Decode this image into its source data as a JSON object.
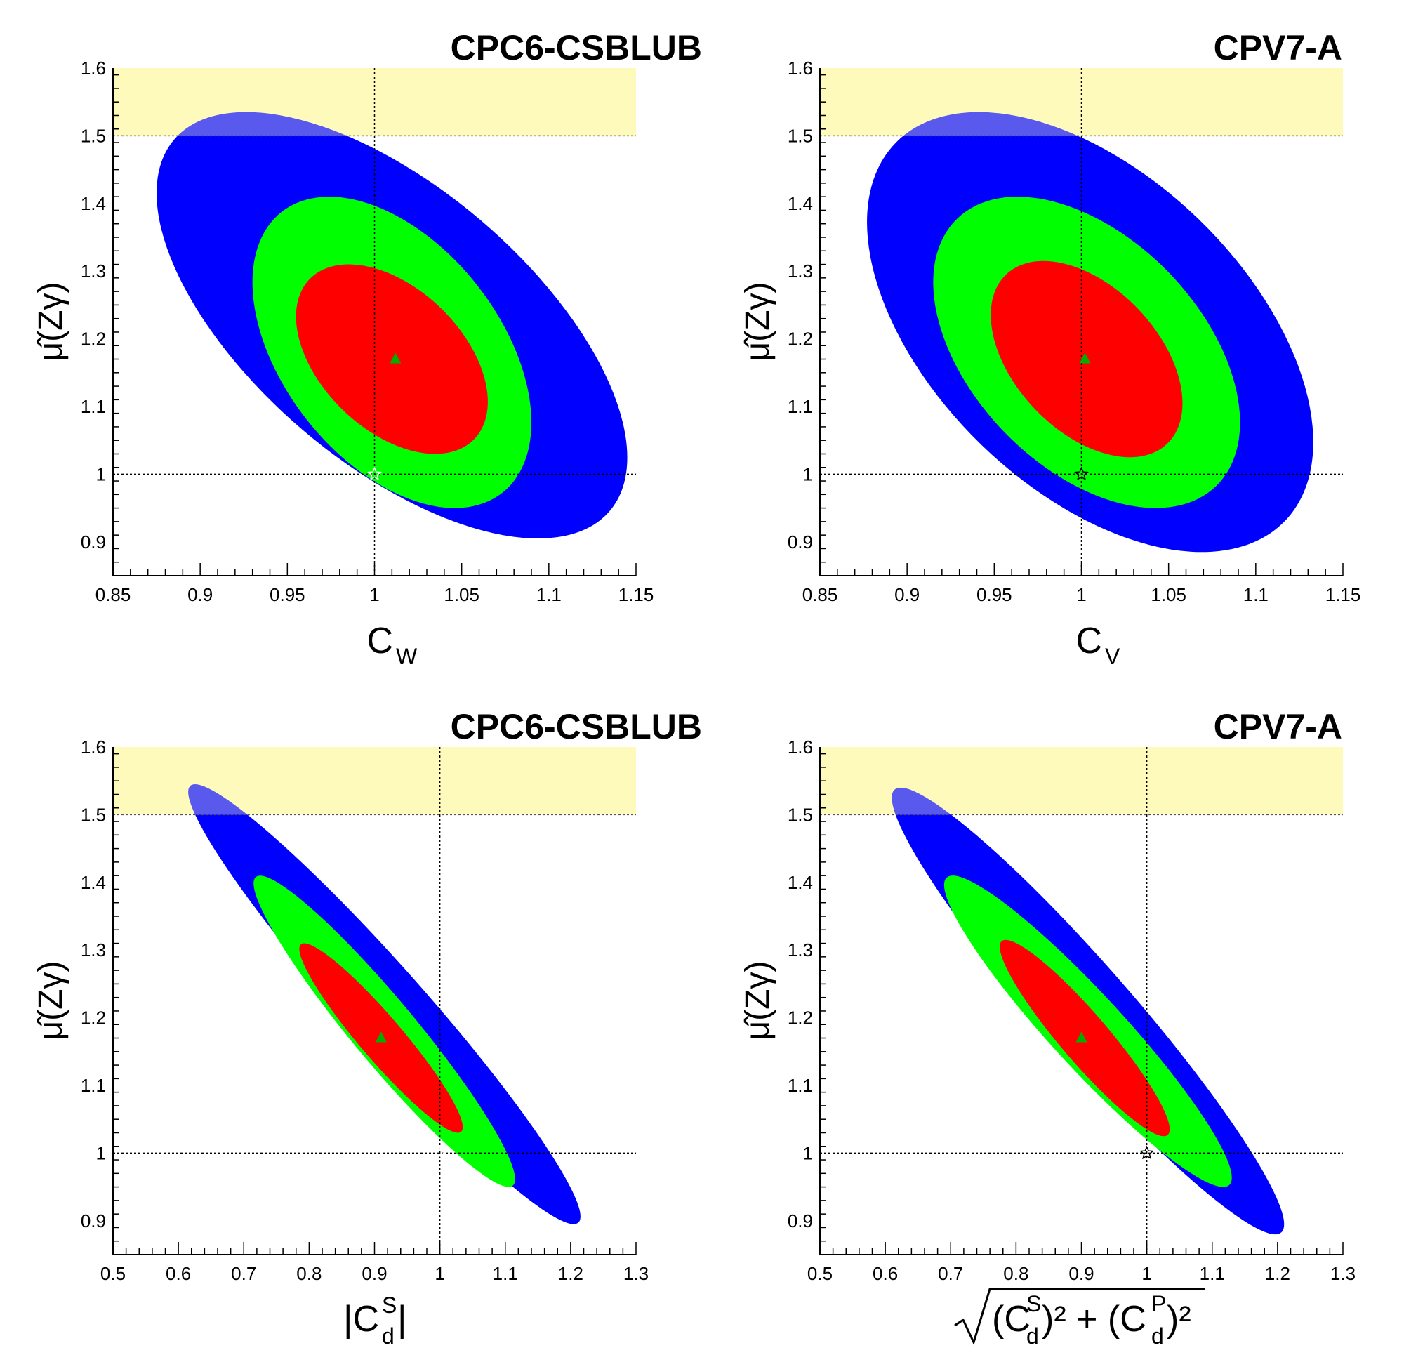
{
  "chart_data": [
    {
      "type": "scatter",
      "title": "CPC6-CSBLUB",
      "ylabel": "μ̂(Zγ)",
      "xlabel": {
        "base": "C",
        "sub": "W"
      },
      "xlim": [
        0.85,
        1.15
      ],
      "ylim": [
        0.85,
        1.6
      ],
      "xticks": [
        "0.85",
        "0.9",
        "0.95",
        "1",
        "1.05",
        "1.1",
        "1.15"
      ],
      "yticks": [
        "0.9",
        "1",
        "1.1",
        "1.2",
        "1.3",
        "1.4",
        "1.5",
        "1.6"
      ],
      "excluded_band": {
        "ymin": 1.5,
        "ymax": 1.6,
        "color": "#fdf8b4"
      },
      "reference_lines": {
        "x": 1.0,
        "y": 1.0
      },
      "best_fit": {
        "x": 1.012,
        "y": 1.17
      },
      "sm_point": {
        "x": 1.0,
        "y": 1.0
      },
      "regions": [
        {
          "level": "3sigma",
          "color": "#0000ff",
          "center": [
            1.01,
            1.22
          ],
          "semi_x": 0.135,
          "semi_y": 0.315,
          "rho": -0.62
        },
        {
          "level": "2sigma",
          "color": "#00ff00",
          "center": [
            1.01,
            1.18
          ],
          "semi_x": 0.08,
          "semi_y": 0.23,
          "rho": -0.45
        },
        {
          "level": "1sigma",
          "color": "#ff0000",
          "center": [
            1.01,
            1.17
          ],
          "semi_x": 0.055,
          "semi_y": 0.14,
          "rho": -0.45
        }
      ]
    },
    {
      "type": "scatter",
      "title": "CPV7-A",
      "ylabel": "μ̂(Zγ)",
      "xlabel": {
        "base": "C",
        "sub": "V"
      },
      "xlim": [
        0.85,
        1.15
      ],
      "ylim": [
        0.85,
        1.6
      ],
      "xticks": [
        "0.85",
        "0.9",
        "0.95",
        "1",
        "1.05",
        "1.1",
        "1.15"
      ],
      "yticks": [
        "0.9",
        "1",
        "1.1",
        "1.2",
        "1.3",
        "1.4",
        "1.5",
        "1.6"
      ],
      "excluded_band": {
        "ymin": 1.5,
        "ymax": 1.6,
        "color": "#fdf8b4"
      },
      "reference_lines": {
        "x": 1.0,
        "y": 1.0
      },
      "best_fit": {
        "x": 1.002,
        "y": 1.17
      },
      "sm_point": {
        "x": 1.0,
        "y": 1.0
      },
      "regions": [
        {
          "level": "3sigma",
          "color": "#0000ff",
          "center": [
            1.005,
            1.21
          ],
          "semi_x": 0.128,
          "semi_y": 0.325,
          "rho": -0.5
        },
        {
          "level": "2sigma",
          "color": "#00ff00",
          "center": [
            1.003,
            1.18
          ],
          "semi_x": 0.088,
          "semi_y": 0.23,
          "rho": -0.45
        },
        {
          "level": "1sigma",
          "color": "#ff0000",
          "center": [
            1.003,
            1.17
          ],
          "semi_x": 0.055,
          "semi_y": 0.145,
          "rho": -0.45
        }
      ]
    },
    {
      "type": "scatter",
      "title": "CPC6-CSBLUB",
      "ylabel": "μ̂(Zγ)",
      "xlabel": {
        "text": "|C",
        "sub": "d",
        "sup": "S",
        "close": "|"
      },
      "xlim": [
        0.5,
        1.3
      ],
      "ylim": [
        0.85,
        1.6
      ],
      "xticks": [
        "0.5",
        "0.6",
        "0.7",
        "0.8",
        "0.9",
        "1",
        "1.1",
        "1.2",
        "1.3"
      ],
      "yticks": [
        "0.9",
        "1",
        "1.1",
        "1.2",
        "1.3",
        "1.4",
        "1.5",
        "1.6"
      ],
      "excluded_band": {
        "ymin": 1.5,
        "ymax": 1.6,
        "color": "#fdf8b4"
      },
      "reference_lines": {
        "x": 1.0,
        "y": 1.0
      },
      "best_fit": {
        "x": 0.91,
        "y": 1.17
      },
      "sm_point": {
        "x": 1.0,
        "y": 1.0
      },
      "regions": [
        {
          "level": "3sigma",
          "color": "#0000ff",
          "center": [
            0.915,
            1.22
          ],
          "semi_x": 0.3,
          "semi_y": 0.325,
          "rho": -0.965
        },
        {
          "level": "2sigma",
          "color": "#00ff00",
          "center": [
            0.915,
            1.18
          ],
          "semi_x": 0.2,
          "semi_y": 0.23,
          "rho": -0.95
        },
        {
          "level": "1sigma",
          "color": "#ff0000",
          "center": [
            0.91,
            1.17
          ],
          "semi_x": 0.125,
          "semi_y": 0.14,
          "rho": -0.94
        }
      ]
    },
    {
      "type": "scatter",
      "title": "CPV7-A",
      "ylabel": "μ̂(Zγ)",
      "xlabel": {
        "text": "(C",
        "sup1": "S",
        "sub1": "d",
        "mid": ")² + (C",
        "sup2": "P",
        "sub2": "d",
        "end": ")²"
      },
      "xlim": [
        0.5,
        1.3
      ],
      "ylim": [
        0.85,
        1.6
      ],
      "xticks": [
        "0.5",
        "0.6",
        "0.7",
        "0.8",
        "0.9",
        "1",
        "1.1",
        "1.2",
        "1.3"
      ],
      "yticks": [
        "0.9",
        "1",
        "1.1",
        "1.2",
        "1.3",
        "1.4",
        "1.5",
        "1.6"
      ],
      "excluded_band": {
        "ymin": 1.5,
        "ymax": 1.6,
        "color": "#fdf8b4"
      },
      "reference_lines": {
        "x": 1.0,
        "y": 1.0
      },
      "best_fit": {
        "x": 0.9,
        "y": 1.17
      },
      "sm_point": {
        "x": 1.0,
        "y": 1.0
      },
      "regions": [
        {
          "level": "3sigma",
          "color": "#0000ff",
          "center": [
            0.91,
            1.21
          ],
          "semi_x": 0.3,
          "semi_y": 0.33,
          "rho": -0.955
        },
        {
          "level": "2sigma",
          "color": "#00ff00",
          "center": [
            0.91,
            1.18
          ],
          "semi_x": 0.22,
          "semi_y": 0.23,
          "rho": -0.94
        },
        {
          "level": "1sigma",
          "color": "#ff0000",
          "center": [
            0.905,
            1.17
          ],
          "semi_x": 0.13,
          "semi_y": 0.145,
          "rho": -0.93
        }
      ]
    }
  ]
}
